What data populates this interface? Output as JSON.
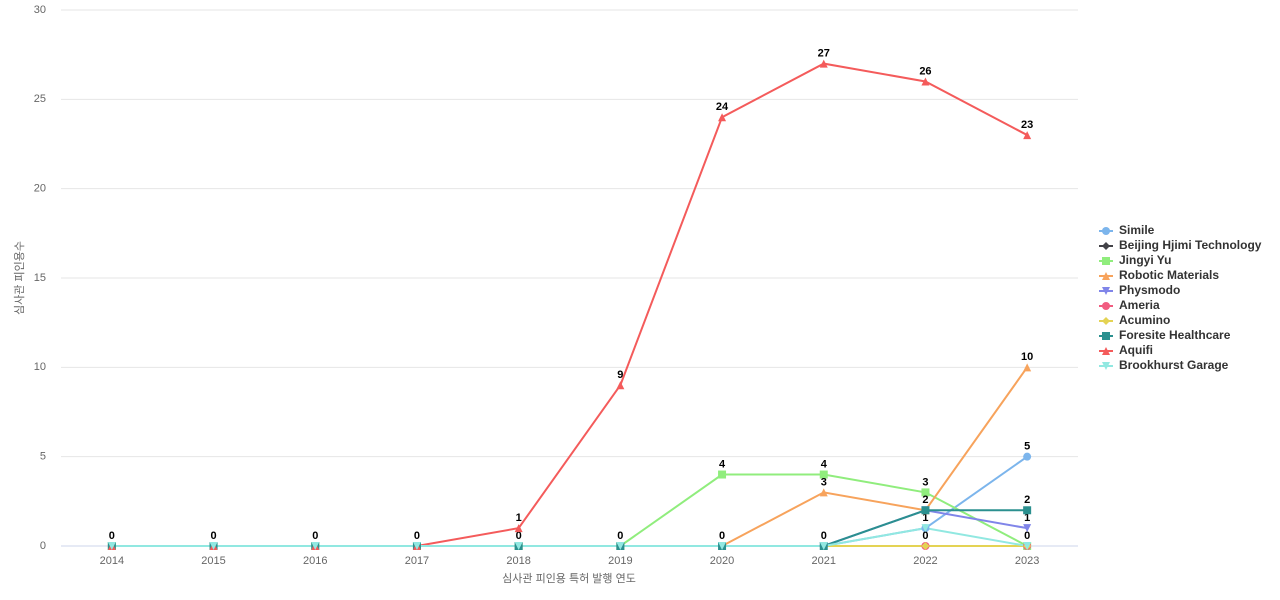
{
  "chart_data": {
    "type": "line",
    "x_label": "심사관 피인용 특허 발행 연도",
    "y_label": "심사관 피인용수",
    "categories": [
      "2014",
      "2015",
      "2016",
      "2017",
      "2018",
      "2019",
      "2020",
      "2021",
      "2022",
      "2023"
    ],
    "ylim": [
      0,
      30
    ],
    "yticks": [
      0,
      5,
      10,
      15,
      20,
      25,
      30
    ],
    "grid": true,
    "legend": "right",
    "series": [
      {
        "name": "Simile",
        "color": "#7cb5ec",
        "symbol": "circle",
        "values": [
          0,
          0,
          0,
          0,
          0,
          0,
          0,
          0,
          1,
          5
        ]
      },
      {
        "name": "Beijing Hjimi Technology",
        "color": "#434348",
        "symbol": "diamond",
        "values": [
          0,
          0,
          0,
          0,
          0,
          0,
          0,
          0,
          0,
          0
        ]
      },
      {
        "name": "Jingyi Yu",
        "color": "#90ed7d",
        "symbol": "square",
        "values": [
          0,
          0,
          0,
          0,
          0,
          0,
          4,
          4,
          3,
          0
        ]
      },
      {
        "name": "Robotic Materials",
        "color": "#f7a35c",
        "symbol": "triangle",
        "values": [
          0,
          0,
          0,
          0,
          0,
          0,
          0,
          3,
          2,
          10
        ]
      },
      {
        "name": "Physmodo",
        "color": "#8085e9",
        "symbol": "triangle-down",
        "values": [
          0,
          0,
          0,
          0,
          0,
          0,
          0,
          0,
          2,
          1
        ]
      },
      {
        "name": "Ameria",
        "color": "#f15c80",
        "symbol": "circle",
        "values": [
          0,
          0,
          0,
          0,
          0,
          0,
          0,
          0,
          0,
          0
        ]
      },
      {
        "name": "Acumino",
        "color": "#e4d354",
        "symbol": "diamond",
        "values": [
          0,
          0,
          0,
          0,
          0,
          0,
          0,
          0,
          0,
          0
        ]
      },
      {
        "name": "Foresite Healthcare",
        "color": "#2b908f",
        "symbol": "square",
        "values": [
          0,
          0,
          0,
          0,
          0,
          0,
          0,
          0,
          2,
          2
        ]
      },
      {
        "name": "Aquifi",
        "color": "#f45b5b",
        "symbol": "triangle",
        "values": [
          0,
          0,
          0,
          0,
          1,
          9,
          24,
          27,
          26,
          23
        ]
      },
      {
        "name": "Brookhurst Garage",
        "color": "#91e8e1",
        "symbol": "triangle-down",
        "values": [
          0,
          0,
          0,
          0,
          0,
          0,
          0,
          0,
          1,
          0
        ]
      }
    ]
  }
}
